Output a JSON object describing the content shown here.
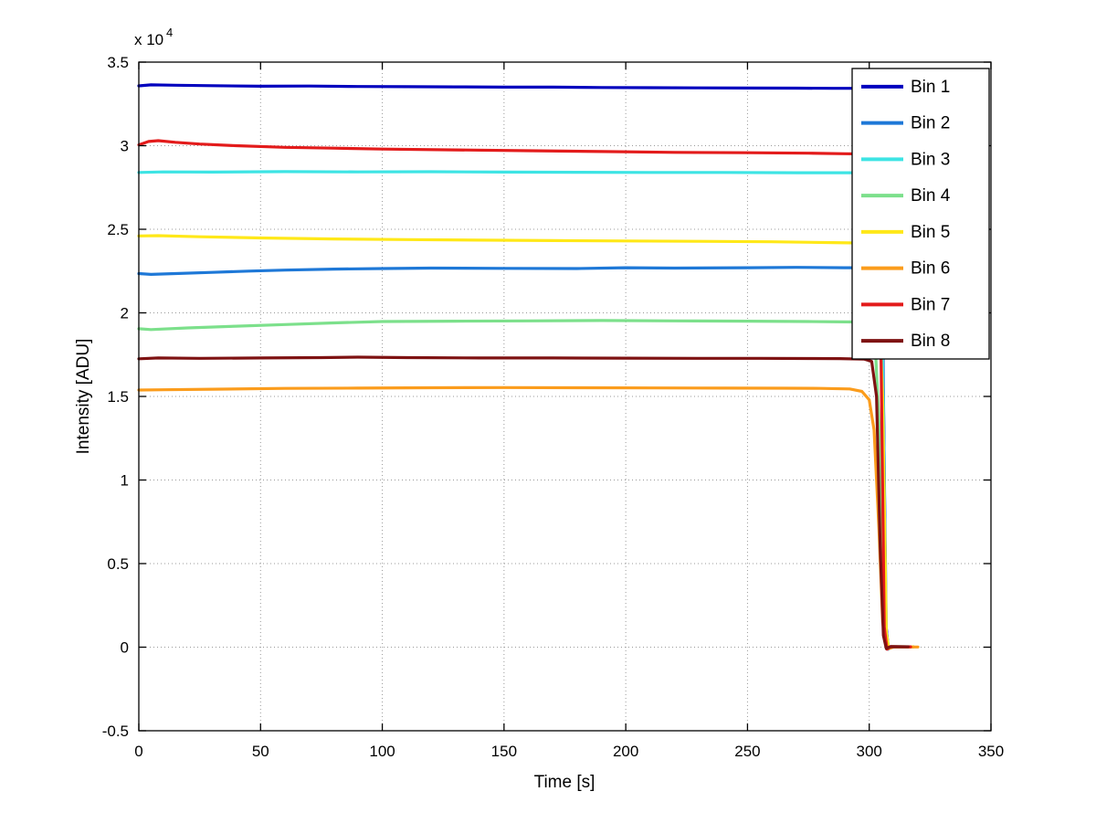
{
  "chart_data": {
    "type": "line",
    "title": "",
    "xlabel": "Time [s]",
    "ylabel": "Intensity [ADU]",
    "y_exp_base": "x 10",
    "y_exp_power": "4",
    "xlim": [
      0,
      350
    ],
    "ylim": [
      -5000,
      35000
    ],
    "xticks": [
      0,
      50,
      100,
      150,
      200,
      250,
      300,
      350
    ],
    "xtick_labels": [
      "0",
      "50",
      "100",
      "150",
      "200",
      "250",
      "300",
      "350"
    ],
    "yticks": [
      -5000,
      0,
      5000,
      10000,
      15000,
      20000,
      25000,
      30000,
      35000
    ],
    "ytick_labels": [
      "-0.5",
      "0",
      "0.5",
      "1",
      "1.5",
      "2",
      "2.5",
      "3",
      "3.5"
    ],
    "grid": true,
    "grid_color": "#999999",
    "axis_color": "#000000",
    "legend_position": "top-right",
    "series": [
      {
        "name": "Bin 1",
        "color": "#0000BE",
        "points": [
          [
            0,
            33580
          ],
          [
            5,
            33640
          ],
          [
            15,
            33620
          ],
          [
            30,
            33590
          ],
          [
            50,
            33560
          ],
          [
            70,
            33570
          ],
          [
            90,
            33540
          ],
          [
            110,
            33530
          ],
          [
            130,
            33520
          ],
          [
            150,
            33500
          ],
          [
            170,
            33500
          ],
          [
            190,
            33480
          ],
          [
            210,
            33470
          ],
          [
            230,
            33460
          ],
          [
            250,
            33450
          ],
          [
            270,
            33440
          ],
          [
            285,
            33430
          ],
          [
            295,
            33430
          ],
          [
            303,
            33430
          ],
          [
            305.5,
            20000
          ],
          [
            306.8,
            1500
          ],
          [
            307.8,
            -120
          ],
          [
            309,
            40
          ],
          [
            312,
            20
          ],
          [
            318,
            20
          ]
        ]
      },
      {
        "name": "Bin 2",
        "color": "#1E78D7",
        "points": [
          [
            0,
            22350
          ],
          [
            5,
            22300
          ],
          [
            15,
            22350
          ],
          [
            30,
            22420
          ],
          [
            45,
            22500
          ],
          [
            60,
            22560
          ],
          [
            80,
            22620
          ],
          [
            100,
            22650
          ],
          [
            120,
            22680
          ],
          [
            150,
            22660
          ],
          [
            180,
            22650
          ],
          [
            200,
            22700
          ],
          [
            220,
            22680
          ],
          [
            250,
            22700
          ],
          [
            270,
            22720
          ],
          [
            290,
            22700
          ],
          [
            303,
            22700
          ],
          [
            305.8,
            15000
          ],
          [
            307,
            1000
          ],
          [
            308,
            -100
          ],
          [
            309.5,
            30
          ],
          [
            318,
            20
          ]
        ]
      },
      {
        "name": "Bin 3",
        "color": "#3DE4E4",
        "points": [
          [
            0,
            28400
          ],
          [
            10,
            28430
          ],
          [
            30,
            28420
          ],
          [
            60,
            28450
          ],
          [
            90,
            28430
          ],
          [
            120,
            28440
          ],
          [
            150,
            28420
          ],
          [
            180,
            28410
          ],
          [
            210,
            28400
          ],
          [
            240,
            28400
          ],
          [
            270,
            28380
          ],
          [
            290,
            28380
          ],
          [
            303,
            28380
          ],
          [
            305.5,
            18000
          ],
          [
            306.8,
            800
          ],
          [
            307.8,
            -100
          ],
          [
            309,
            30
          ],
          [
            317,
            20
          ]
        ]
      },
      {
        "name": "Bin 4",
        "color": "#7CE08B",
        "points": [
          [
            0,
            19050
          ],
          [
            5,
            19000
          ],
          [
            20,
            19100
          ],
          [
            40,
            19200
          ],
          [
            60,
            19300
          ],
          [
            80,
            19400
          ],
          [
            100,
            19480
          ],
          [
            130,
            19500
          ],
          [
            160,
            19520
          ],
          [
            190,
            19540
          ],
          [
            220,
            19520
          ],
          [
            250,
            19500
          ],
          [
            275,
            19480
          ],
          [
            290,
            19460
          ],
          [
            302,
            19450
          ],
          [
            304.5,
            12000
          ],
          [
            306,
            800
          ],
          [
            307,
            -80
          ],
          [
            308.5,
            30
          ],
          [
            316,
            20
          ]
        ]
      },
      {
        "name": "Bin 5",
        "color": "#FFE818",
        "points": [
          [
            0,
            24600
          ],
          [
            8,
            24620
          ],
          [
            25,
            24550
          ],
          [
            50,
            24480
          ],
          [
            80,
            24420
          ],
          [
            110,
            24380
          ],
          [
            140,
            24350
          ],
          [
            170,
            24320
          ],
          [
            200,
            24300
          ],
          [
            230,
            24280
          ],
          [
            260,
            24250
          ],
          [
            285,
            24200
          ],
          [
            295,
            24180
          ],
          [
            303,
            24170
          ],
          [
            305.5,
            15000
          ],
          [
            307,
            900
          ],
          [
            308,
            -90
          ],
          [
            309.5,
            30
          ],
          [
            318,
            20
          ]
        ]
      },
      {
        "name": "Bin 6",
        "color": "#FB9C1C",
        "points": [
          [
            0,
            15380
          ],
          [
            10,
            15400
          ],
          [
            30,
            15430
          ],
          [
            60,
            15480
          ],
          [
            90,
            15500
          ],
          [
            120,
            15520
          ],
          [
            150,
            15530
          ],
          [
            180,
            15520
          ],
          [
            210,
            15510
          ],
          [
            240,
            15500
          ],
          [
            265,
            15490
          ],
          [
            280,
            15480
          ],
          [
            292,
            15450
          ],
          [
            297,
            15300
          ],
          [
            300,
            14800
          ],
          [
            302,
            13000
          ],
          [
            304,
            7000
          ],
          [
            305.5,
            1500
          ],
          [
            307,
            0
          ],
          [
            308.5,
            -60
          ],
          [
            310,
            10
          ],
          [
            320,
            10
          ]
        ]
      },
      {
        "name": "Bin 7",
        "color": "#E31B1B",
        "points": [
          [
            0,
            30050
          ],
          [
            4,
            30250
          ],
          [
            8,
            30300
          ],
          [
            15,
            30200
          ],
          [
            25,
            30100
          ],
          [
            40,
            30000
          ],
          [
            60,
            29900
          ],
          [
            80,
            29850
          ],
          [
            100,
            29800
          ],
          [
            130,
            29750
          ],
          [
            160,
            29700
          ],
          [
            190,
            29650
          ],
          [
            220,
            29600
          ],
          [
            250,
            29580
          ],
          [
            275,
            29550
          ],
          [
            290,
            29520
          ],
          [
            302,
            29500
          ],
          [
            304.8,
            18000
          ],
          [
            306.2,
            1200
          ],
          [
            307.3,
            -120
          ],
          [
            308.8,
            40
          ],
          [
            317,
            20
          ]
        ]
      },
      {
        "name": "Bin 8",
        "color": "#7E1212",
        "points": [
          [
            0,
            17250
          ],
          [
            8,
            17300
          ],
          [
            25,
            17280
          ],
          [
            50,
            17300
          ],
          [
            75,
            17320
          ],
          [
            90,
            17350
          ],
          [
            110,
            17320
          ],
          [
            140,
            17300
          ],
          [
            170,
            17300
          ],
          [
            200,
            17290
          ],
          [
            230,
            17280
          ],
          [
            255,
            17280
          ],
          [
            275,
            17270
          ],
          [
            288,
            17260
          ],
          [
            298,
            17230
          ],
          [
            301,
            17100
          ],
          [
            303,
            15000
          ],
          [
            304.5,
            6000
          ],
          [
            305.8,
            700
          ],
          [
            307,
            -80
          ],
          [
            308.5,
            30
          ],
          [
            316,
            20
          ]
        ]
      }
    ]
  }
}
